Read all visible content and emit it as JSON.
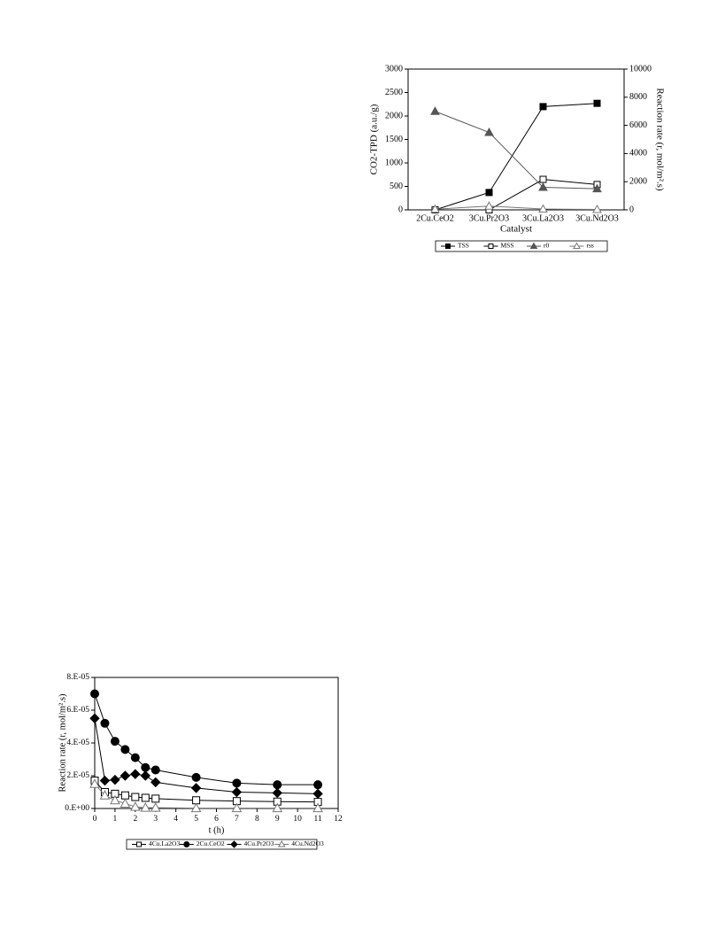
{
  "chart_data": [
    {
      "type": "line",
      "categories": [
        "2Cu.CeO2",
        "3Cu.Pr2O3",
        "3Cu.La2O3",
        "3Cu.Nd2O3"
      ],
      "x_label": "Catalyst",
      "y_label": "CO2-TPD (a.u./g)",
      "y2_label": "Reaction rate (r, mol/m².s)",
      "ylim": [
        0,
        3000
      ],
      "yticks": [
        0,
        500,
        1000,
        1500,
        2000,
        2500,
        3000
      ],
      "y2lim": [
        0,
        10000
      ],
      "y2ticks": [
        0,
        2000,
        4000,
        6000,
        8000,
        10000
      ],
      "series": [
        {
          "name": "TSS",
          "color": "#000000",
          "marker": "square",
          "fill": "filled",
          "values": [
            0,
            370,
            2200,
            2270
          ]
        },
        {
          "name": "MSS",
          "color": "#000000",
          "marker": "square",
          "fill": "open",
          "values": [
            0,
            0,
            650,
            540
          ]
        },
        {
          "name": "r0",
          "color": "#555555",
          "marker": "triangle",
          "fill": "filled",
          "axis": "y2",
          "values": [
            7000,
            5500,
            1600,
            1500
          ]
        },
        {
          "name": "rss",
          "color": "#777777",
          "marker": "triangle",
          "fill": "open",
          "axis": "y2",
          "values": [
            50,
            270,
            60,
            30
          ]
        }
      ]
    },
    {
      "type": "line",
      "x": [
        0,
        0.5,
        1,
        1.5,
        2,
        2.5,
        3,
        5,
        7,
        9,
        11
      ],
      "x_label": "t (h)",
      "y_label": "Reaction rate (r, mol/m².s)",
      "xlim": [
        0,
        12
      ],
      "xticks": [
        0,
        1,
        2,
        3,
        4,
        5,
        6,
        7,
        8,
        9,
        10,
        11,
        12
      ],
      "ylim": [
        0,
        8e-05
      ],
      "yticks": [
        {
          "value": 0,
          "label": "0.E+00"
        },
        {
          "value": 2e-05,
          "label": "2.E-05"
        },
        {
          "value": 4e-05,
          "label": "4.E-05"
        },
        {
          "value": 6e-05,
          "label": "6.E-05"
        },
        {
          "value": 8e-05,
          "label": "8.E-05"
        }
      ],
      "series": [
        {
          "name": "4Cu.La2O3",
          "color": "#000000",
          "marker": "square",
          "fill": "open",
          "values": [
            1.7e-05,
            1e-05,
            9e-06,
            8e-06,
            7e-06,
            6.5e-06,
            6e-06,
            5e-06,
            4.5e-06,
            4.2e-06,
            4e-06
          ]
        },
        {
          "name": "2Cu.CeO2",
          "color": "#000000",
          "marker": "circle",
          "fill": "filled",
          "values": [
            7e-05,
            5.2e-05,
            4.1e-05,
            3.6e-05,
            3.1e-05,
            2.5e-05,
            2.35e-05,
            1.9e-05,
            1.55e-05,
            1.45e-05,
            1.45e-05
          ]
        },
        {
          "name": "4Cu.Pr2O3",
          "color": "#000000",
          "marker": "diamond",
          "fill": "filled",
          "values": [
            5.5e-05,
            1.7e-05,
            1.75e-05,
            2e-05,
            2.1e-05,
            2e-05,
            1.6e-05,
            1.25e-05,
            1e-05,
            9.5e-06,
            9e-06
          ]
        },
        {
          "name": "4Cu.Nd2O3",
          "color": "#777777",
          "marker": "triangle",
          "fill": "open",
          "values": [
            1.5e-05,
            8e-06,
            5e-06,
            3e-06,
            1e-06,
            5e-07,
            5e-07,
            2e-07,
            2e-07,
            2e-07,
            2e-07
          ]
        }
      ]
    }
  ]
}
